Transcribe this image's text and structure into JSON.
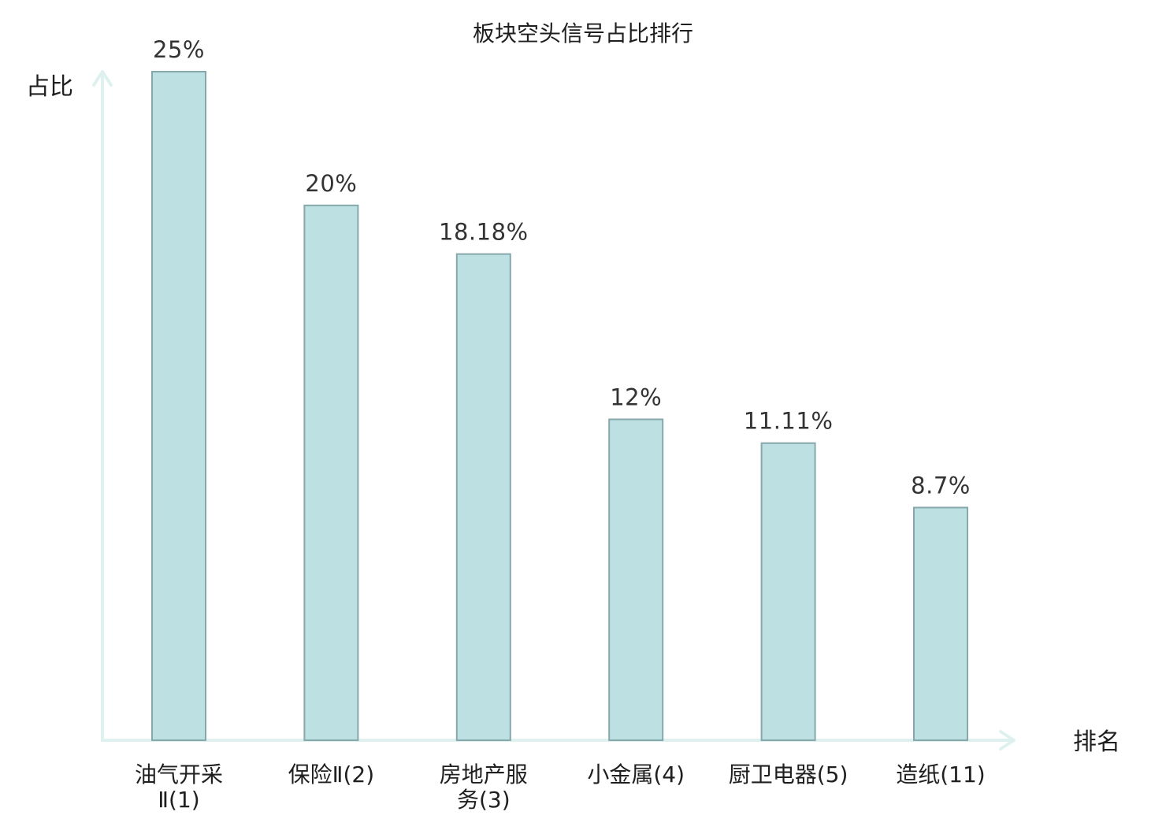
{
  "chart_data": {
    "type": "bar",
    "title": "板块空头信号占比排行",
    "ylabel": "占比",
    "xlabel": "排名",
    "categories": [
      {
        "name": "油气开采Ⅱ",
        "rank": "(1)",
        "lines": [
          "油气开采",
          "Ⅱ(1)"
        ],
        "highlight": false
      },
      {
        "name": "保险Ⅱ",
        "rank": "(2)",
        "lines": [
          "保险Ⅱ(2)"
        ],
        "highlight": false
      },
      {
        "name": "房地产服务",
        "rank": "(3)",
        "lines": [
          "房地产服",
          "务(3)"
        ],
        "highlight": false
      },
      {
        "name": "小金属",
        "rank": "(4)",
        "lines": [
          "小金属(4)"
        ],
        "highlight": false
      },
      {
        "name": "厨卫电器",
        "rank": "(5)",
        "lines": [
          "厨卫电器(5)"
        ],
        "highlight": false
      },
      {
        "name": "造纸",
        "rank": "(11)",
        "lines": [
          "造纸(11)"
        ],
        "highlight": true
      }
    ],
    "values": [
      25,
      20,
      18.18,
      12,
      11.11,
      8.7
    ],
    "value_labels": [
      "25%",
      "20%",
      "18.18%",
      "12%",
      "11.11%",
      "8.7%"
    ],
    "ylim": [
      0,
      25
    ],
    "grid": false,
    "colors": {
      "bar_fill": "#bde0e3",
      "bar_stroke": "#86a8ab",
      "axis": "#dff1ef",
      "highlight": "#e0191f",
      "text": "#1f1f1f"
    }
  }
}
